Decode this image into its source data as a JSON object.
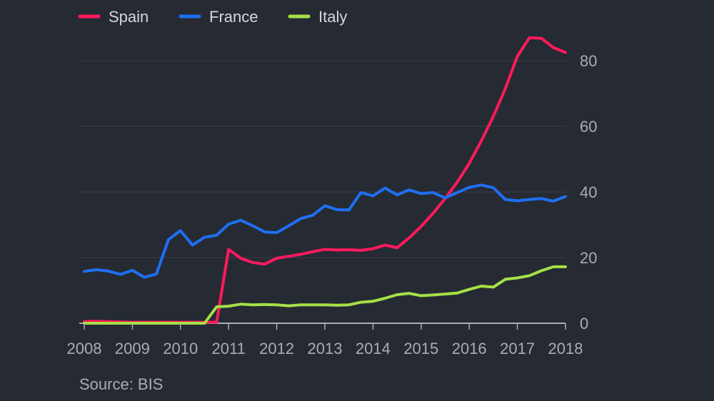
{
  "chart_data": {
    "type": "line",
    "title": "",
    "xlabel": "",
    "ylabel": "",
    "xlim": [
      2008,
      2018
    ],
    "ylim": [
      0,
      80
    ],
    "grid": true,
    "legend_position": "top-left",
    "x_ticks": [
      "2008",
      "2009",
      "2010",
      "2011",
      "2012",
      "2013",
      "2014",
      "2015",
      "2016",
      "2017",
      "2018"
    ],
    "y_ticks": [
      "0",
      "20",
      "40",
      "60",
      "80"
    ],
    "x": [
      2008.0,
      2008.25,
      2008.5,
      2008.75,
      2009.0,
      2009.25,
      2009.5,
      2009.75,
      2010.0,
      2010.25,
      2010.5,
      2010.75,
      2011.0,
      2011.25,
      2011.5,
      2011.75,
      2012.0,
      2012.25,
      2012.5,
      2012.75,
      2013.0,
      2013.25,
      2013.5,
      2013.75,
      2014.0,
      2014.25,
      2014.5,
      2014.75,
      2015.0,
      2015.25,
      2015.5,
      2015.75,
      2016.0,
      2016.25,
      2016.5,
      2016.75,
      2017.0,
      2017.25,
      2017.5,
      2017.75,
      2018.0
    ],
    "series": [
      {
        "name": "Spain",
        "color": "#ff1a5c",
        "values": [
          0.5,
          0.6,
          0.5,
          0.4,
          0.3,
          0.3,
          0.3,
          0.3,
          0.3,
          0.3,
          0.3,
          0.3,
          22.5,
          19.8,
          18.5,
          18,
          19.8,
          20.4,
          21,
          21.8,
          22.5,
          22.3,
          22.4,
          22.2,
          22.7,
          23.8,
          23,
          26,
          29.5,
          33.5,
          38,
          43,
          48.7,
          55.5,
          63,
          71.5,
          81.3,
          87,
          86.8,
          84,
          82.5
        ]
      },
      {
        "name": "France",
        "color": "#1e6ff2",
        "values": [
          15.8,
          16.3,
          15.9,
          14.9,
          16.1,
          14,
          15,
          25.5,
          28.2,
          23.8,
          26.2,
          26.8,
          30.2,
          31.4,
          29.7,
          27.8,
          27.6,
          29.7,
          31.9,
          32.9,
          35.8,
          34.6,
          34.5,
          39.8,
          38.8,
          41.2,
          39.1,
          40.6,
          39.5,
          39.8,
          38.2,
          39.8,
          41.4,
          42.1,
          41.3,
          37.7,
          37.3,
          37.7,
          38,
          37.2,
          38.6
        ]
      },
      {
        "name": "Italy",
        "color": "#a5e046",
        "values": [
          0,
          0,
          0,
          0,
          0,
          0,
          0,
          0,
          0,
          0,
          0,
          5,
          5.2,
          5.8,
          5.6,
          5.7,
          5.6,
          5.3,
          5.6,
          5.6,
          5.6,
          5.5,
          5.6,
          6.4,
          6.7,
          7.6,
          8.7,
          9.1,
          8.4,
          8.6,
          8.9,
          9.2,
          10.3,
          11.3,
          11,
          13.4,
          13.8,
          14.5,
          16,
          17.2,
          17.2
        ]
      }
    ]
  },
  "footer": {
    "source": "Source: BIS"
  },
  "colors": {
    "background": "#262a33",
    "grid": "#3b3f49",
    "axis": "#a9acb4"
  }
}
